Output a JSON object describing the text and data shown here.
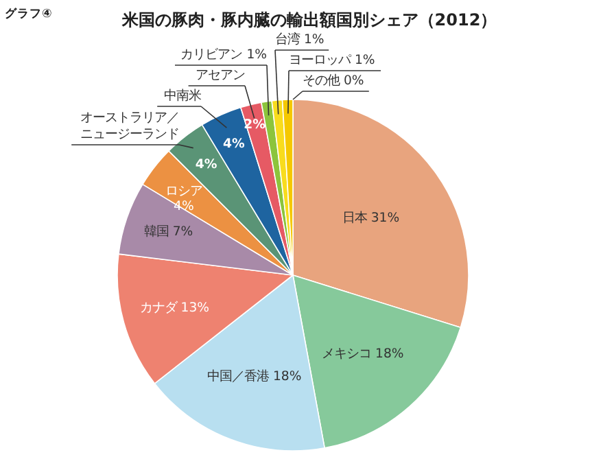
{
  "chart_data": {
    "type": "pie",
    "title": "米国の豚肉・豚内臓の輸出額国別シェア（2012）",
    "annotations": [
      "グラフ④"
    ],
    "categories": [
      "日本",
      "メキシコ",
      "中国／香港",
      "カナダ",
      "韓国",
      "ロシア",
      "オーストラリア／ニュージーランド",
      "中南米",
      "アセアン",
      "カリビアン",
      "台湾",
      "ヨーロッパ",
      "その他"
    ],
    "values": [
      31,
      18,
      18,
      13,
      7,
      4,
      4,
      4,
      2,
      1,
      1,
      1,
      0
    ],
    "value_labels": [
      "31%",
      "18%",
      "18%",
      "13%",
      "7%",
      "4%",
      "4%",
      "4%",
      "2%",
      "1%",
      "1%",
      "1%",
      "0%"
    ],
    "colors": [
      "#e8a47e",
      "#86c99b",
      "#b8dff0",
      "#ee8270",
      "#a88aa8",
      "#ec9142",
      "#5a9476",
      "#1e64a0",
      "#e65a64",
      "#8cc43c",
      "#f8dc1e",
      "#f5c800",
      "#6e8cc0"
    ]
  }
}
